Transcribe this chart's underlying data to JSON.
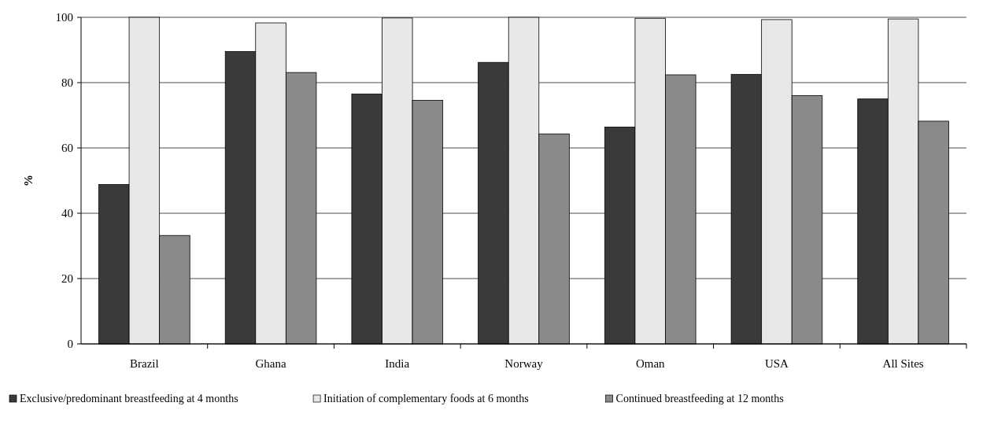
{
  "chart_data": {
    "type": "bar",
    "ylabel": "%",
    "categories": [
      "Brazil",
      "Ghana",
      "India",
      "Norway",
      "Oman",
      "USA",
      "All Sites"
    ],
    "series": [
      {
        "name": "Exclusive/predominant breastfeeding at 4 months",
        "color": "#3a3a3a",
        "values": [
          48.8,
          89.5,
          76.5,
          86.2,
          66.4,
          82.5,
          75
        ]
      },
      {
        "name": "Initiation of complementary foods at 6 months",
        "color": "#e8e8e8",
        "values": [
          100,
          98.3,
          99.8,
          100,
          99.7,
          99.3,
          99.5
        ]
      },
      {
        "name": "Continued breastfeeding at 12 months",
        "color": "#8a8a8a",
        "values": [
          33.2,
          83.1,
          74.6,
          64.3,
          82.4,
          76,
          68.2
        ]
      }
    ],
    "ylim": [
      0,
      100
    ],
    "yticks": [
      0,
      20,
      40,
      60,
      80,
      100
    ],
    "grid": "y",
    "legend": "bottom"
  }
}
